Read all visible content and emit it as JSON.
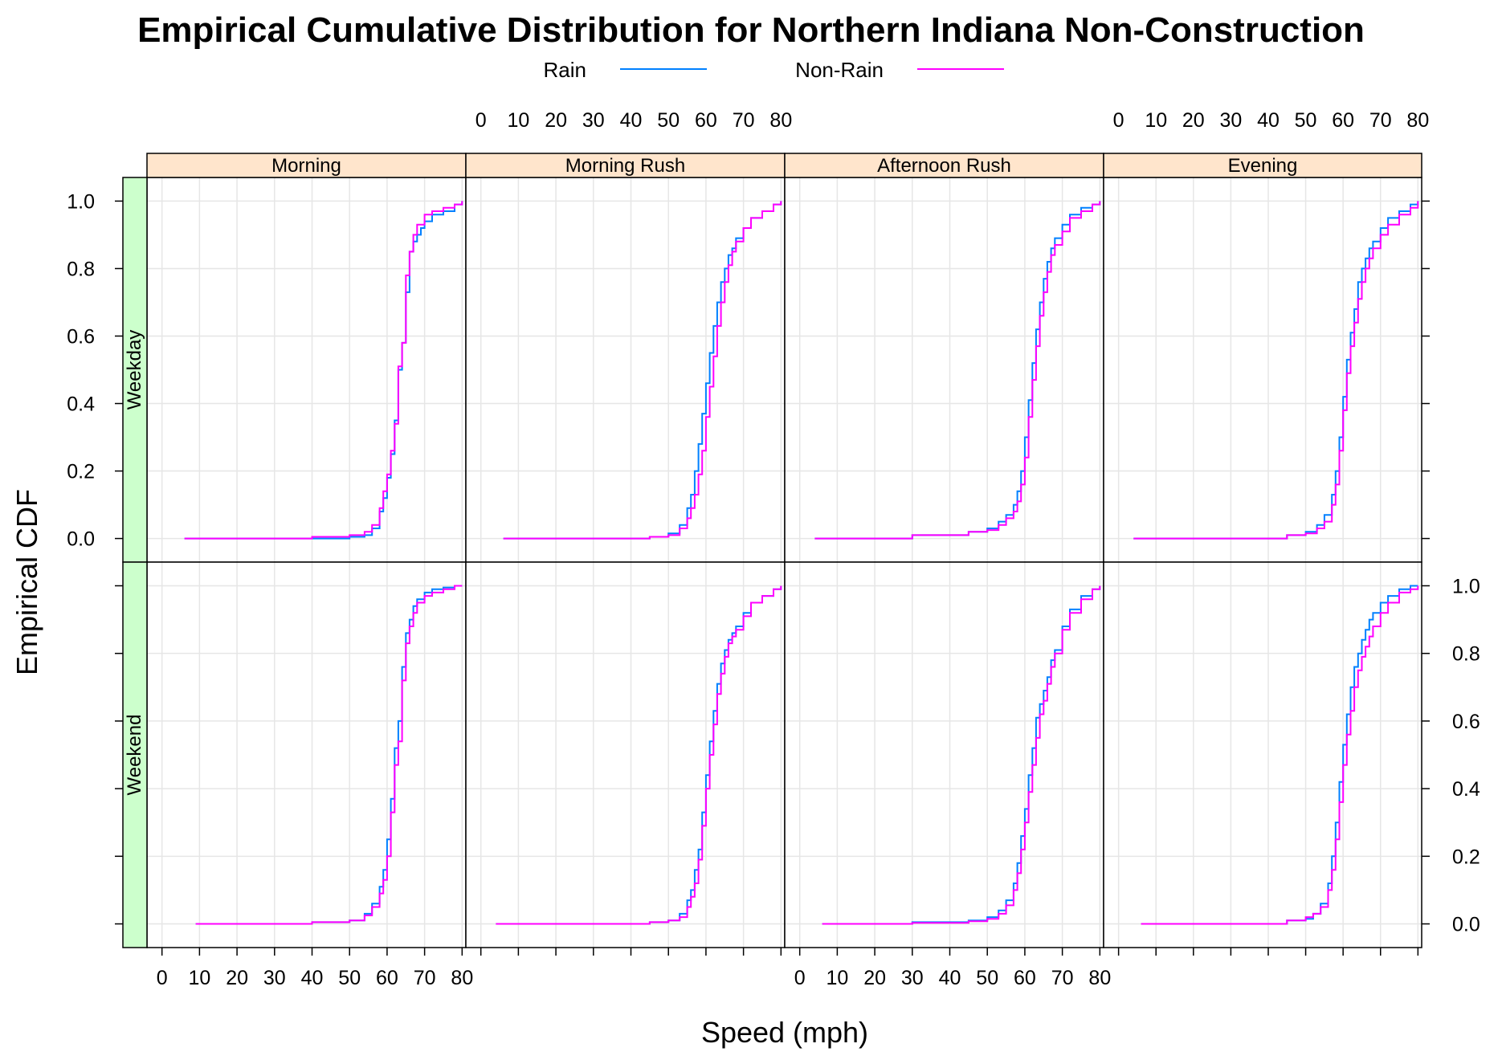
{
  "chart_data": {
    "type": "line",
    "title": "Empirical Cumulative Distribution for Northern Indiana Non-Construction",
    "xlabel": "Speed (mph)",
    "ylabel": "Empirical CDF",
    "xlim": [
      -4,
      81
    ],
    "ylim": [
      -0.07,
      1.07
    ],
    "x_ticks": [
      0,
      10,
      20,
      30,
      40,
      50,
      60,
      70,
      80
    ],
    "y_ticks": [
      0.0,
      0.2,
      0.4,
      0.6,
      0.8,
      1.0
    ],
    "y_tick_labels": [
      "0.0",
      "0.2",
      "0.4",
      "0.6",
      "0.8",
      "1.0"
    ],
    "grid": true,
    "legend_position": "top",
    "legend": [
      {
        "name": "Rain",
        "color": "#0080ff"
      },
      {
        "name": "Non-Rain",
        "color": "#ff00ff"
      }
    ],
    "columns": [
      "Morning",
      "Morning Rush",
      "Afternoon Rush",
      "Evening"
    ],
    "rows": [
      "Weekday",
      "Weekend"
    ],
    "strip_colors": {
      "column": "#ffe5cc",
      "row": "#ccffcc"
    },
    "panels": [
      {
        "row": "Weekday",
        "column": "Morning",
        "series": [
          {
            "name": "Rain",
            "x": [
              6,
              50,
              54,
              56,
              58,
              59,
              60,
              61,
              62,
              63,
              64,
              65,
              66,
              67,
              68,
              69,
              70,
              72,
              75,
              78,
              80
            ],
            "y": [
              0,
              0.005,
              0.01,
              0.03,
              0.08,
              0.12,
              0.18,
              0.25,
              0.35,
              0.5,
              0.58,
              0.73,
              0.85,
              0.88,
              0.9,
              0.92,
              0.94,
              0.96,
              0.97,
              0.99,
              1.0
            ]
          },
          {
            "name": "Non-Rain",
            "x": [
              6,
              40,
              50,
              54,
              56,
              58,
              59,
              60,
              61,
              62,
              63,
              64,
              65,
              66,
              67,
              68,
              70,
              72,
              75,
              78,
              80
            ],
            "y": [
              0,
              0.005,
              0.01,
              0.02,
              0.04,
              0.09,
              0.14,
              0.19,
              0.26,
              0.34,
              0.51,
              0.58,
              0.78,
              0.85,
              0.9,
              0.93,
              0.96,
              0.97,
              0.98,
              0.99,
              1.0
            ]
          }
        ]
      },
      {
        "row": "Weekday",
        "column": "Morning Rush",
        "series": [
          {
            "name": "Rain",
            "x": [
              6,
              45,
              50,
              53,
              55,
              56,
              57,
              58,
              59,
              60,
              61,
              62,
              63,
              64,
              65,
              66,
              67,
              68,
              70,
              72,
              75,
              78,
              80
            ],
            "y": [
              0,
              0.005,
              0.015,
              0.04,
              0.09,
              0.13,
              0.2,
              0.28,
              0.37,
              0.46,
              0.55,
              0.63,
              0.7,
              0.76,
              0.8,
              0.84,
              0.86,
              0.89,
              0.92,
              0.95,
              0.97,
              0.99,
              1.0
            ]
          },
          {
            "name": "Non-Rain",
            "x": [
              6,
              45,
              50,
              53,
              55,
              56,
              57,
              58,
              59,
              60,
              61,
              62,
              63,
              64,
              65,
              66,
              67,
              68,
              70,
              72,
              75,
              78,
              80
            ],
            "y": [
              0,
              0.005,
              0.01,
              0.03,
              0.06,
              0.09,
              0.13,
              0.19,
              0.26,
              0.36,
              0.45,
              0.54,
              0.63,
              0.7,
              0.76,
              0.81,
              0.85,
              0.88,
              0.92,
              0.95,
              0.97,
              0.99,
              1.0
            ]
          }
        ]
      },
      {
        "row": "Weekday",
        "column": "Afternoon Rush",
        "series": [
          {
            "name": "Rain",
            "x": [
              4,
              30,
              45,
              50,
              53,
              55,
              57,
              58,
              59,
              60,
              61,
              62,
              63,
              64,
              65,
              66,
              67,
              68,
              70,
              72,
              75,
              78,
              80
            ],
            "y": [
              0,
              0.01,
              0.02,
              0.03,
              0.05,
              0.07,
              0.1,
              0.14,
              0.2,
              0.3,
              0.41,
              0.52,
              0.62,
              0.7,
              0.77,
              0.82,
              0.86,
              0.89,
              0.93,
              0.96,
              0.98,
              0.99,
              1.0
            ]
          },
          {
            "name": "Non-Rain",
            "x": [
              4,
              30,
              45,
              50,
              53,
              55,
              57,
              58,
              59,
              60,
              61,
              62,
              63,
              64,
              65,
              66,
              67,
              68,
              70,
              72,
              75,
              78,
              80
            ],
            "y": [
              0,
              0.01,
              0.02,
              0.025,
              0.04,
              0.06,
              0.08,
              0.11,
              0.16,
              0.24,
              0.36,
              0.47,
              0.57,
              0.66,
              0.73,
              0.79,
              0.84,
              0.87,
              0.91,
              0.95,
              0.97,
              0.99,
              1.0
            ]
          }
        ]
      },
      {
        "row": "Weekday",
        "column": "Evening",
        "series": [
          {
            "name": "Rain",
            "x": [
              4,
              45,
              50,
              53,
              55,
              57,
              58,
              59,
              60,
              61,
              62,
              63,
              64,
              65,
              66,
              67,
              68,
              70,
              72,
              75,
              78,
              80
            ],
            "y": [
              0,
              0.01,
              0.02,
              0.04,
              0.07,
              0.13,
              0.2,
              0.3,
              0.42,
              0.53,
              0.61,
              0.68,
              0.76,
              0.8,
              0.83,
              0.86,
              0.88,
              0.92,
              0.95,
              0.97,
              0.99,
              1.0
            ]
          },
          {
            "name": "Non-Rain",
            "x": [
              4,
              45,
              50,
              53,
              55,
              57,
              58,
              59,
              60,
              61,
              62,
              63,
              64,
              65,
              66,
              67,
              68,
              70,
              72,
              75,
              78,
              80
            ],
            "y": [
              0,
              0.01,
              0.015,
              0.03,
              0.05,
              0.1,
              0.16,
              0.26,
              0.38,
              0.49,
              0.57,
              0.64,
              0.71,
              0.76,
              0.8,
              0.83,
              0.86,
              0.9,
              0.93,
              0.96,
              0.98,
              1.0
            ]
          }
        ]
      },
      {
        "row": "Weekend",
        "column": "Morning",
        "series": [
          {
            "name": "Rain",
            "x": [
              9,
              40,
              50,
              54,
              56,
              58,
              59,
              60,
              61,
              62,
              63,
              64,
              65,
              66,
              67,
              68,
              70,
              72,
              75,
              78,
              80
            ],
            "y": [
              0,
              0.005,
              0.01,
              0.03,
              0.06,
              0.11,
              0.16,
              0.25,
              0.37,
              0.52,
              0.6,
              0.76,
              0.86,
              0.9,
              0.94,
              0.96,
              0.98,
              0.99,
              0.995,
              1.0,
              1.0
            ]
          },
          {
            "name": "Non-Rain",
            "x": [
              9,
              40,
              50,
              54,
              56,
              58,
              59,
              60,
              61,
              62,
              63,
              64,
              65,
              66,
              67,
              68,
              70,
              72,
              75,
              78,
              80
            ],
            "y": [
              0,
              0.005,
              0.01,
              0.025,
              0.05,
              0.09,
              0.13,
              0.2,
              0.33,
              0.47,
              0.54,
              0.72,
              0.83,
              0.88,
              0.92,
              0.95,
              0.97,
              0.98,
              0.99,
              1.0,
              1.0
            ]
          }
        ]
      },
      {
        "row": "Weekend",
        "column": "Morning Rush",
        "series": [
          {
            "name": "Rain",
            "x": [
              4,
              45,
              50,
              53,
              55,
              56,
              57,
              58,
              59,
              60,
              61,
              62,
              63,
              64,
              65,
              66,
              67,
              68,
              70,
              72,
              75,
              78,
              80
            ],
            "y": [
              0,
              0.005,
              0.01,
              0.03,
              0.07,
              0.1,
              0.16,
              0.22,
              0.33,
              0.44,
              0.54,
              0.63,
              0.71,
              0.77,
              0.81,
              0.84,
              0.86,
              0.88,
              0.92,
              0.95,
              0.97,
              0.99,
              1.0
            ]
          },
          {
            "name": "Non-Rain",
            "x": [
              4,
              45,
              50,
              53,
              55,
              56,
              57,
              58,
              59,
              60,
              61,
              62,
              63,
              64,
              65,
              66,
              67,
              68,
              70,
              72,
              75,
              78,
              80
            ],
            "y": [
              0,
              0.005,
              0.01,
              0.02,
              0.05,
              0.08,
              0.12,
              0.19,
              0.29,
              0.4,
              0.5,
              0.59,
              0.68,
              0.74,
              0.79,
              0.83,
              0.85,
              0.87,
              0.91,
              0.95,
              0.97,
              0.99,
              1.0
            ]
          }
        ]
      },
      {
        "row": "Weekend",
        "column": "Afternoon Rush",
        "series": [
          {
            "name": "Rain",
            "x": [
              6,
              30,
              45,
              50,
              53,
              55,
              57,
              58,
              59,
              60,
              61,
              62,
              63,
              64,
              65,
              66,
              67,
              68,
              70,
              72,
              75,
              78,
              80
            ],
            "y": [
              0,
              0.005,
              0.01,
              0.02,
              0.04,
              0.07,
              0.12,
              0.18,
              0.26,
              0.34,
              0.44,
              0.52,
              0.61,
              0.65,
              0.69,
              0.73,
              0.78,
              0.81,
              0.88,
              0.93,
              0.97,
              0.99,
              1.0
            ]
          },
          {
            "name": "Non-Rain",
            "x": [
              6,
              30,
              45,
              50,
              53,
              55,
              57,
              58,
              59,
              60,
              61,
              62,
              63,
              64,
              65,
              66,
              67,
              68,
              70,
              72,
              75,
              78,
              80
            ],
            "y": [
              0,
              0.003,
              0.008,
              0.015,
              0.03,
              0.055,
              0.1,
              0.15,
              0.22,
              0.3,
              0.39,
              0.47,
              0.55,
              0.62,
              0.66,
              0.71,
              0.76,
              0.8,
              0.87,
              0.92,
              0.96,
              0.99,
              1.0
            ]
          }
        ]
      },
      {
        "row": "Weekend",
        "column": "Evening",
        "series": [
          {
            "name": "Rain",
            "x": [
              6,
              45,
              50,
              52,
              54,
              56,
              57,
              58,
              59,
              60,
              61,
              62,
              63,
              64,
              65,
              66,
              67,
              68,
              70,
              72,
              75,
              78,
              80
            ],
            "y": [
              0,
              0.01,
              0.015,
              0.03,
              0.06,
              0.12,
              0.2,
              0.3,
              0.42,
              0.53,
              0.62,
              0.7,
              0.76,
              0.8,
              0.84,
              0.87,
              0.9,
              0.92,
              0.95,
              0.97,
              0.99,
              1.0,
              1.0
            ]
          },
          {
            "name": "Non-Rain",
            "x": [
              6,
              45,
              50,
              52,
              54,
              56,
              57,
              58,
              59,
              60,
              61,
              62,
              63,
              64,
              65,
              66,
              67,
              68,
              70,
              72,
              75,
              78,
              80
            ],
            "y": [
              0,
              0.01,
              0.02,
              0.03,
              0.05,
              0.1,
              0.16,
              0.25,
              0.36,
              0.47,
              0.56,
              0.63,
              0.7,
              0.75,
              0.79,
              0.82,
              0.85,
              0.88,
              0.92,
              0.95,
              0.98,
              0.99,
              1.0
            ]
          }
        ]
      }
    ]
  }
}
